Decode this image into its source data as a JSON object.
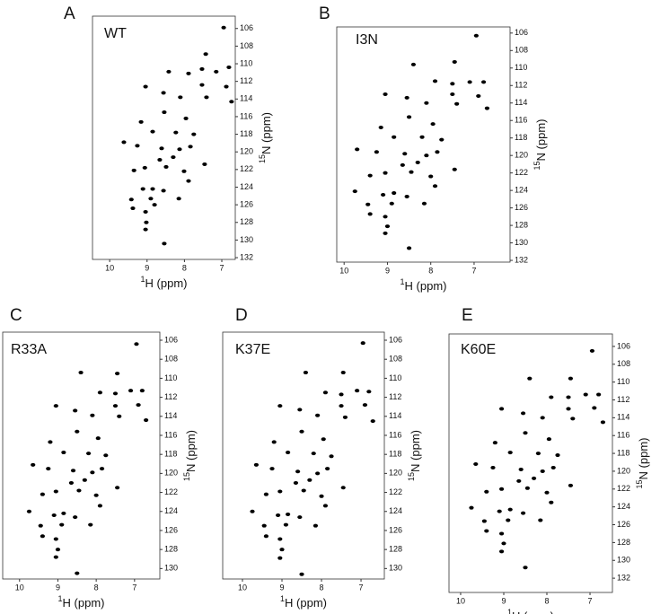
{
  "chart_data": [
    {
      "type": "scatter",
      "panel": "A",
      "label": "WT",
      "x_label_sup": "1",
      "x_label": "H  (ppm)",
      "y_label_sup": "15",
      "y_label": "N  (ppm)",
      "xlim": [
        10.46,
        6.64
      ],
      "ylim": [
        104.6,
        132.2
      ],
      "xticks": [
        10,
        9,
        8,
        7
      ],
      "yticks": [
        106,
        108,
        110,
        112,
        114,
        116,
        118,
        120,
        122,
        124,
        126,
        128,
        130,
        132
      ],
      "series": [
        {
          "color": "#000000",
          "x": [
            6.95,
            7.43,
            6.81,
            7.15,
            7.53,
            7.89,
            8.42,
            9.04,
            8.56,
            7.53,
            6.88,
            6.74,
            8.11,
            7.41,
            8.54,
            7.96,
            9.16,
            8.85,
            8.23,
            7.75,
            9.62,
            9.26,
            8.61,
            8.13,
            7.84,
            8.66,
            8.3,
            9.06,
            9.35,
            8.49,
            8.01,
            7.46,
            7.89,
            9.11,
            8.85,
            8.56,
            9.42,
            8.9,
            8.15,
            9.38,
            9.04,
            9.02,
            9.04,
            8.54,
            8.8
          ],
          "values": [
            105.9,
            108.9,
            110.4,
            110.9,
            110.6,
            111.1,
            110.9,
            112.6,
            113.3,
            112.4,
            112.6,
            114.3,
            113.8,
            113.8,
            115.5,
            116.2,
            116.6,
            117.7,
            117.8,
            118.0,
            118.9,
            119.3,
            119.6,
            119.7,
            119.4,
            120.9,
            120.6,
            121.8,
            122.1,
            121.7,
            122.2,
            121.4,
            123.3,
            124.2,
            124.2,
            124.4,
            125.4,
            125.3,
            125.3,
            126.4,
            126.8,
            128.0,
            128.8,
            130.4,
            126.0
          ]
        }
      ]
    },
    {
      "type": "scatter",
      "panel": "B",
      "label": "I3N",
      "x_label_sup": "1",
      "x_label": "H  (ppm)",
      "y_label_sup": "15",
      "y_label": "N  (ppm)",
      "xlim": [
        10.17,
        6.17
      ],
      "ylim": [
        105.3,
        132.2
      ],
      "xticks": [
        10,
        9,
        8,
        7
      ],
      "yticks": [
        106,
        108,
        110,
        112,
        114,
        116,
        118,
        120,
        122,
        124,
        126,
        128,
        130,
        132
      ],
      "series": [
        {
          "color": "#000000",
          "x": [
            6.95,
            7.45,
            6.78,
            7.1,
            7.5,
            7.9,
            8.4,
            9.05,
            8.55,
            7.5,
            6.9,
            6.7,
            8.1,
            7.4,
            8.5,
            7.95,
            9.15,
            8.85,
            8.2,
            7.75,
            9.7,
            9.25,
            8.6,
            8.1,
            7.85,
            8.65,
            8.3,
            9.05,
            9.4,
            8.45,
            8.0,
            7.45,
            7.9,
            9.1,
            8.85,
            8.55,
            9.45,
            8.9,
            8.15,
            9.4,
            9.05,
            9.0,
            9.05,
            8.5,
            9.75
          ],
          "values": [
            106.3,
            109.3,
            111.6,
            111.6,
            111.8,
            111.5,
            109.6,
            113.0,
            113.4,
            113.0,
            113.2,
            114.6,
            114.0,
            114.1,
            115.6,
            116.4,
            116.8,
            117.9,
            117.9,
            118.2,
            119.3,
            119.6,
            119.8,
            120.0,
            119.6,
            121.1,
            120.8,
            122.0,
            122.3,
            121.9,
            122.4,
            121.6,
            123.5,
            124.5,
            124.3,
            124.7,
            125.6,
            125.5,
            125.5,
            126.7,
            127.0,
            128.1,
            128.9,
            130.6,
            124.1
          ]
        }
      ]
    },
    {
      "type": "scatter",
      "panel": "C",
      "label": "R33A",
      "x_label_sup": "1",
      "x_label": "H  (ppm)",
      "y_label_sup": "15",
      "y_label": "N  (ppm)",
      "xlim": [
        10.44,
        6.34
      ],
      "ylim": [
        105.15,
        131.1
      ],
      "xticks": [
        10,
        9,
        8,
        7
      ],
      "yticks": [
        106,
        108,
        110,
        112,
        114,
        116,
        118,
        120,
        122,
        124,
        126,
        128,
        130
      ],
      "series": [
        {
          "color": "#000000",
          "x": [
            6.95,
            7.45,
            6.8,
            7.1,
            7.5,
            7.9,
            8.4,
            9.05,
            8.55,
            7.5,
            6.9,
            6.7,
            8.1,
            7.4,
            8.5,
            7.95,
            9.2,
            8.85,
            8.2,
            7.75,
            9.65,
            9.25,
            8.6,
            8.1,
            7.85,
            8.65,
            8.3,
            9.05,
            9.4,
            8.45,
            8.0,
            7.45,
            7.9,
            9.1,
            8.85,
            8.55,
            9.45,
            8.9,
            8.15,
            9.4,
            9.05,
            9.0,
            9.05,
            8.5,
            9.75
          ],
          "values": [
            106.4,
            109.5,
            111.3,
            111.3,
            111.6,
            111.5,
            109.4,
            112.9,
            113.4,
            112.9,
            112.8,
            114.4,
            113.9,
            114.0,
            115.6,
            116.3,
            116.7,
            117.8,
            117.9,
            118.1,
            119.1,
            119.5,
            119.7,
            119.9,
            119.5,
            121.0,
            120.7,
            121.9,
            122.2,
            121.8,
            122.3,
            121.5,
            123.4,
            124.4,
            124.2,
            124.6,
            125.5,
            125.4,
            125.4,
            126.6,
            126.9,
            128.0,
            128.8,
            130.5,
            124.0
          ]
        }
      ]
    },
    {
      "type": "scatter",
      "panel": "D",
      "label": "K37E",
      "x_label_sup": "1",
      "x_label": "H  (ppm)",
      "y_label_sup": "15",
      "y_label": "N  (ppm)",
      "xlim": [
        10.5,
        6.41
      ],
      "ylim": [
        105.15,
        131.1
      ],
      "xticks": [
        10,
        9,
        8,
        7
      ],
      "yticks": [
        106,
        108,
        110,
        112,
        114,
        116,
        118,
        120,
        122,
        124,
        126,
        128,
        130
      ],
      "series": [
        {
          "color": "#000000",
          "x": [
            6.95,
            7.45,
            6.8,
            7.1,
            7.5,
            7.9,
            8.4,
            9.05,
            8.55,
            7.5,
            6.9,
            6.7,
            8.1,
            7.4,
            8.5,
            7.95,
            9.2,
            8.85,
            8.2,
            7.75,
            9.65,
            9.25,
            8.6,
            8.1,
            7.85,
            8.65,
            8.3,
            9.05,
            9.4,
            8.45,
            8.0,
            7.45,
            7.9,
            9.1,
            8.85,
            8.55,
            9.45,
            8.9,
            8.15,
            9.4,
            9.05,
            9.0,
            9.05,
            8.5,
            9.75
          ],
          "values": [
            106.3,
            109.4,
            111.4,
            111.3,
            111.7,
            111.5,
            109.4,
            112.9,
            113.3,
            112.9,
            112.8,
            114.5,
            113.9,
            114.1,
            115.6,
            116.4,
            116.7,
            117.8,
            117.9,
            118.2,
            119.1,
            119.5,
            119.8,
            120.0,
            119.5,
            121.0,
            120.7,
            121.9,
            122.2,
            121.8,
            122.4,
            121.5,
            123.4,
            124.4,
            124.3,
            124.6,
            125.5,
            125.4,
            125.5,
            126.6,
            126.9,
            128.0,
            128.9,
            130.6,
            124.0
          ]
        }
      ]
    },
    {
      "type": "scatter",
      "panel": "E",
      "label": "K60E",
      "x_label_sup": "1",
      "x_label": "H  (ppm)",
      "y_label_sup": "15",
      "y_label": "N  (ppm)",
      "xlim": [
        10.27,
        6.48
      ],
      "ylim": [
        104.6,
        133.6
      ],
      "xticks": [
        10,
        9,
        8,
        7
      ],
      "yticks": [
        106,
        108,
        110,
        112,
        114,
        116,
        118,
        120,
        122,
        124,
        126,
        128,
        130,
        132
      ],
      "series": [
        {
          "color": "#000000",
          "x": [
            6.95,
            7.45,
            6.8,
            7.1,
            7.5,
            7.9,
            8.4,
            9.05,
            8.55,
            7.5,
            6.9,
            6.7,
            8.1,
            7.4,
            8.5,
            7.95,
            9.2,
            8.85,
            8.2,
            7.75,
            9.65,
            9.25,
            8.6,
            8.1,
            7.85,
            8.65,
            8.3,
            9.05,
            9.4,
            8.45,
            8.0,
            7.45,
            7.9,
            9.1,
            8.85,
            8.55,
            9.45,
            8.9,
            8.15,
            9.4,
            9.05,
            9.0,
            9.05,
            8.5,
            9.75
          ],
          "values": [
            106.5,
            109.6,
            111.4,
            111.4,
            111.7,
            111.7,
            109.6,
            113.0,
            113.5,
            113.0,
            112.9,
            114.5,
            114.0,
            114.1,
            115.7,
            116.4,
            116.8,
            117.9,
            118.0,
            118.2,
            119.2,
            119.6,
            119.8,
            120.0,
            119.6,
            121.1,
            120.8,
            122.0,
            122.3,
            121.9,
            122.4,
            121.6,
            123.5,
            124.5,
            124.3,
            124.7,
            125.6,
            125.5,
            125.5,
            126.7,
            127.0,
            128.1,
            129.0,
            130.8,
            124.1
          ]
        }
      ]
    }
  ]
}
